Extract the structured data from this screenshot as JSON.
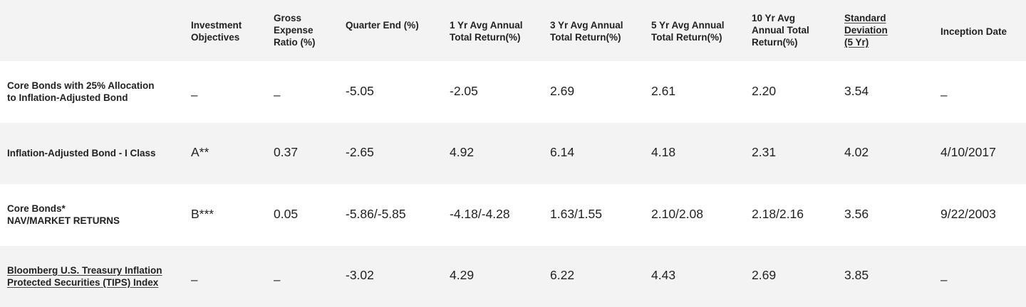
{
  "headers": [
    "",
    "Investment Objectives",
    "Gross Expense Ratio (%)",
    "Quarter End (%)",
    "1 Yr Avg Annual Total Return(%)",
    "3 Yr Avg Annual Total Return(%)",
    "5 Yr Avg Annual Total Return(%)",
    "10 Yr Avg Annual Total Return(%)",
    "Standard Deviation (5 Yr)",
    "Inception Date"
  ],
  "header_lines": {
    "h1": [
      "Investment",
      "Objectives"
    ],
    "h2": [
      "Gross",
      "Expense",
      "Ratio (%)"
    ],
    "h3": [
      "Quarter End (%)"
    ],
    "h4": [
      "1 Yr Avg Annual",
      "Total Return(%)"
    ],
    "h5": [
      "3 Yr Avg Annual",
      "Total Return(%)"
    ],
    "h6": [
      "5 Yr Avg Annual",
      "Total Return(%)"
    ],
    "h7": [
      "10 Yr Avg",
      "Annual Total",
      "Return(%)"
    ],
    "h8": [
      "Standard",
      "Deviation",
      "(5 Yr)"
    ],
    "h9": [
      "Inception Date"
    ]
  },
  "rows": [
    {
      "name_lines": [
        "Core Bonds with 25% Allocation",
        "to Inflation-Adjusted Bond"
      ],
      "objective": "–",
      "expense": "–",
      "quarter_end": "-5.05",
      "yr1": "-2.05",
      "yr3": "2.69",
      "yr5": "2.61",
      "yr10": "2.20",
      "std_dev": "3.54",
      "inception": "–"
    },
    {
      "name_lines": [
        "Inflation-Adjusted Bond - I Class"
      ],
      "objective": "A**",
      "expense": "0.37",
      "quarter_end": "-2.65",
      "yr1": "4.92",
      "yr3": "6.14",
      "yr5": "4.18",
      "yr10": "2.31",
      "std_dev": "4.02",
      "inception": "4/10/2017"
    },
    {
      "name_lines": [
        "Core Bonds*",
        "NAV/MARKET RETURNS"
      ],
      "objective": "B***",
      "expense": "0.05",
      "quarter_end": "-5.86/-5.85",
      "yr1": "-4.18/-4.28",
      "yr3": "1.63/1.55",
      "yr5": "2.10/2.08",
      "yr10": "2.18/2.16",
      "std_dev": "3.56",
      "inception": "9/22/2003"
    },
    {
      "name_lines": [
        "Bloomberg U.S. Treasury Inflation",
        "Protected Securities (TIPS) Index"
      ],
      "objective": "–",
      "expense": "–",
      "quarter_end": "-3.02",
      "yr1": "4.29",
      "yr3": "6.22",
      "yr5": "4.43",
      "yr10": "2.69",
      "std_dev": "3.85",
      "inception": "–"
    }
  ]
}
